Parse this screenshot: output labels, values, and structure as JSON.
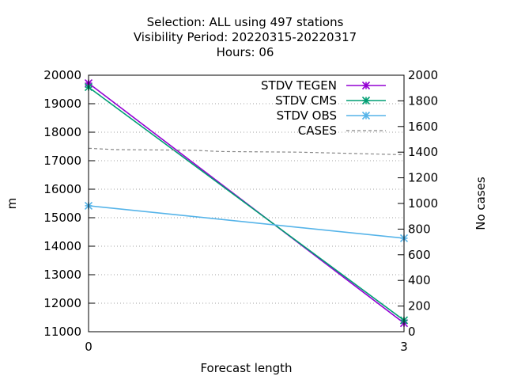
{
  "chart_data": {
    "type": "line",
    "title_lines": [
      "Selection: ALL using   497 stations",
      "Visibility   Period: 20220315-20220317",
      "Hours:  06"
    ],
    "xlabel": "Forecast length",
    "ylabel": "m",
    "y2label": "No cases",
    "x_ticks": [
      0,
      3
    ],
    "xlim": [
      0,
      3
    ],
    "ylim": [
      11000,
      20000
    ],
    "y_ticks": [
      11000,
      12000,
      13000,
      14000,
      15000,
      16000,
      17000,
      18000,
      19000,
      20000
    ],
    "y2lim": [
      0,
      2000
    ],
    "y2_ticks": [
      0,
      200,
      400,
      600,
      800,
      1000,
      1200,
      1400,
      1600,
      1800,
      2000
    ],
    "grid": "horizontal dotted",
    "legend_position": "top-right",
    "series": [
      {
        "name": "STDV TEGEN",
        "axis": "y",
        "color": "#9400d3",
        "marker": "x-star",
        "dash": "solid",
        "x": [
          0,
          3
        ],
        "y": [
          19720,
          11300
        ]
      },
      {
        "name": "STDV CMS",
        "axis": "y",
        "color": "#009e73",
        "marker": "x-star",
        "dash": "solid",
        "x": [
          0,
          3
        ],
        "y": [
          19580,
          11400
        ]
      },
      {
        "name": "STDV OBS",
        "axis": "y",
        "color": "#56b4e9",
        "marker": "x-star",
        "dash": "solid",
        "x": [
          0,
          3
        ],
        "y": [
          15420,
          14280
        ]
      },
      {
        "name": "CASES",
        "axis": "y2",
        "color": "#888888",
        "marker": "none",
        "dash": "dashed",
        "x": [
          0,
          0.25,
          1.0,
          1.25,
          2.0,
          2.5,
          3.0
        ],
        "y": [
          1430,
          1420,
          1415,
          1405,
          1400,
          1390,
          1380
        ]
      }
    ]
  }
}
